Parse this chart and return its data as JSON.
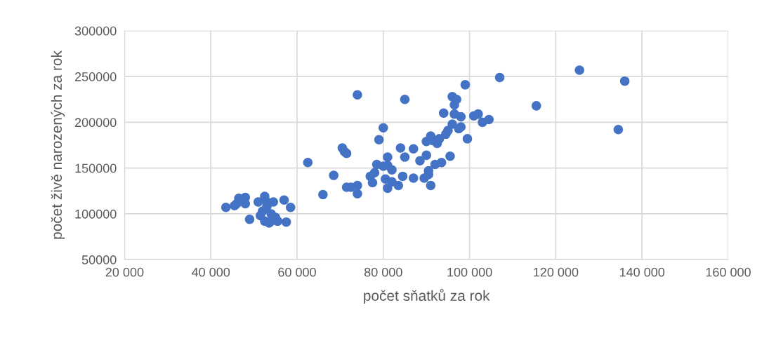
{
  "chart_data": {
    "type": "scatter",
    "xlabel": "počet sňatků za rok",
    "ylabel": "počet živě narozených za rok",
    "xlim": [
      20000,
      160000
    ],
    "xticks": [
      {
        "value": 20000,
        "label": "20 000"
      },
      {
        "value": 40000,
        "label": "40 000"
      },
      {
        "value": 60000,
        "label": "60 000"
      },
      {
        "value": 80000,
        "label": "80 000"
      },
      {
        "value": 100000,
        "label": "100 000"
      },
      {
        "value": 120000,
        "label": "120 000"
      },
      {
        "value": 140000,
        "label": "140 000"
      },
      {
        "value": 160000,
        "label": "160 000"
      }
    ],
    "ylim": [
      50000,
      300000
    ],
    "yticks": [
      50000,
      100000,
      150000,
      200000,
      250000,
      300000
    ],
    "grid": true,
    "marker": "circle",
    "series": [
      {
        "color": "#4472c4",
        "x": [
          43500,
          45500,
          46000,
          46500,
          48000,
          48000,
          49000,
          51000,
          51500,
          52000,
          52500,
          52500,
          53000,
          53000,
          53500,
          54000,
          54500,
          55000,
          55500,
          57000,
          57500,
          58500,
          54000,
          62500,
          66000,
          68500,
          70500,
          71000,
          71500,
          71500,
          72500,
          74000,
          74000,
          74000,
          77000,
          77500,
          78000,
          78500,
          79000,
          80000,
          80000,
          80500,
          81000,
          81000,
          81000,
          82000,
          82000,
          83500,
          84000,
          84500,
          85000,
          85000,
          87000,
          87000,
          88500,
          89500,
          90000,
          90000,
          90500,
          90500,
          91000,
          91000,
          91500,
          92000,
          92500,
          93000,
          93500,
          94000,
          94500,
          95000,
          95500,
          96000,
          96000,
          96500,
          97000,
          96500,
          97500,
          98000,
          98000,
          99000,
          99500,
          101000,
          102000,
          103000,
          104500,
          107000,
          115500,
          125500,
          134500,
          136000
        ],
        "values": [
          107000,
          109000,
          111000,
          117000,
          118000,
          111000,
          94000,
          113000,
          98000,
          103000,
          119000,
          92000,
          108000,
          113000,
          90000,
          92000,
          113000,
          96000,
          92000,
          115000,
          91000,
          107000,
          100000,
          156000,
          121000,
          142000,
          172000,
          168000,
          166000,
          129000,
          129000,
          131000,
          122000,
          230000,
          141000,
          134000,
          145000,
          154000,
          181000,
          194000,
          152000,
          138000,
          162000,
          153000,
          128000,
          148000,
          135000,
          131000,
          172000,
          141000,
          162000,
          225000,
          171000,
          139000,
          158000,
          139000,
          164000,
          179000,
          147000,
          143000,
          131000,
          185000,
          180000,
          154000,
          177000,
          182000,
          156000,
          210000,
          187000,
          191000,
          163000,
          228000,
          198000,
          219000,
          225000,
          209000,
          193000,
          206000,
          195000,
          241000,
          182000,
          207000,
          209000,
          200000,
          203000,
          249000,
          218000,
          257000,
          192000,
          245000
        ]
      }
    ]
  }
}
